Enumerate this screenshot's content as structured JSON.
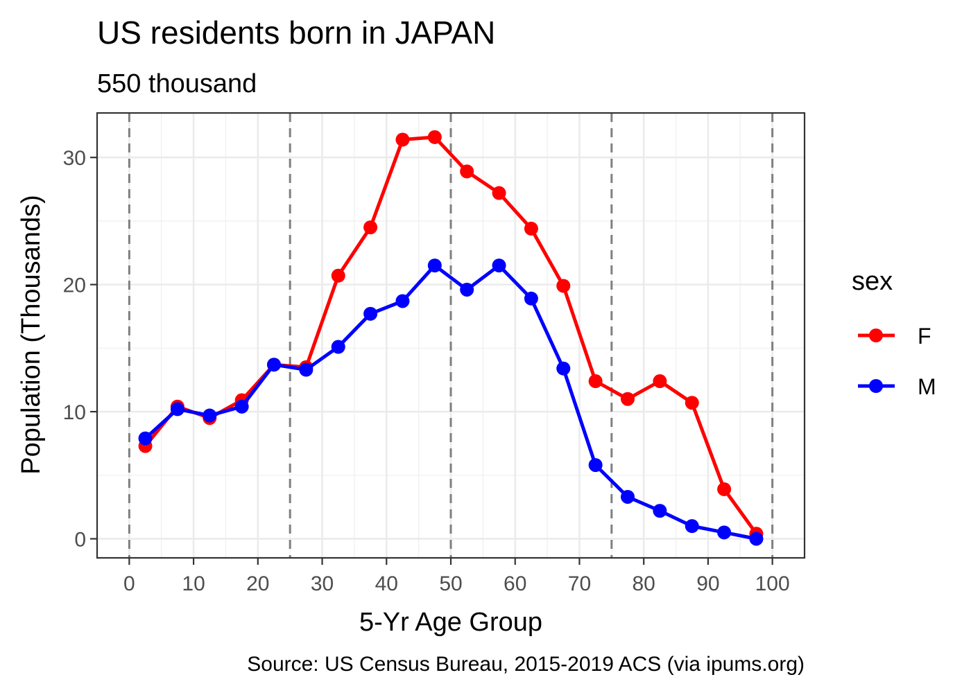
{
  "chart_data": {
    "type": "line",
    "title": "US residents born in JAPAN",
    "subtitle": "550 thousand",
    "xlabel": "5-Yr Age Group",
    "ylabel": "Population (Thousands)",
    "caption": "Source: US Census Bureau, 2015-2019 ACS (via ipums.org)",
    "xlim": [
      -5,
      105
    ],
    "ylim": [
      -1.5,
      33.5
    ],
    "x_ticks": [
      0,
      10,
      20,
      30,
      40,
      50,
      60,
      70,
      80,
      90,
      100
    ],
    "y_ticks": [
      0,
      10,
      20,
      30
    ],
    "reference_lines_x": [
      0,
      25,
      50,
      75,
      100
    ],
    "grid": true,
    "legend_title": "sex",
    "legend_position": "right",
    "x": [
      2.5,
      7.5,
      12.5,
      17.5,
      22.5,
      27.5,
      32.5,
      37.5,
      42.5,
      47.5,
      52.5,
      57.5,
      62.5,
      67.5,
      72.5,
      77.5,
      82.5,
      87.5,
      92.5,
      97.5
    ],
    "series": [
      {
        "name": "F",
        "color": "#ff0000",
        "values": [
          7.3,
          10.4,
          9.5,
          10.9,
          13.7,
          13.5,
          20.7,
          24.5,
          31.4,
          31.6,
          28.9,
          27.2,
          24.4,
          19.9,
          12.4,
          11.0,
          12.4,
          10.7,
          3.9,
          0.4
        ]
      },
      {
        "name": "M",
        "color": "#0000ff",
        "values": [
          7.9,
          10.2,
          9.7,
          10.4,
          13.7,
          13.3,
          15.1,
          17.7,
          18.7,
          21.5,
          19.6,
          21.5,
          18.9,
          13.4,
          5.8,
          3.3,
          2.2,
          1.0,
          0.5,
          0.0
        ]
      }
    ]
  }
}
